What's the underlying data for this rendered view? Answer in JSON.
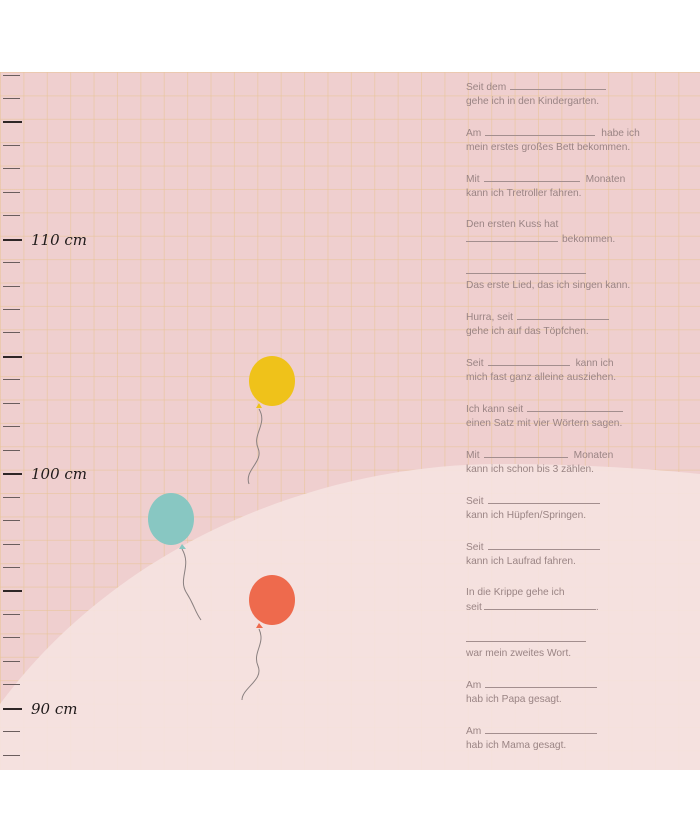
{
  "ruler": {
    "labels": [
      "110 cm",
      "100 cm",
      "90 cm"
    ]
  },
  "balloons": [
    {
      "name": "yellow-balloon",
      "color": "#efc21a"
    },
    {
      "name": "teal-balloon",
      "color": "#88c7c2"
    },
    {
      "name": "orange-balloon",
      "color": "#ee6a4d"
    }
  ],
  "colors": {
    "background": "#efcfcf",
    "hill": "#f6e4e1",
    "grid": "#e8c496",
    "text": "#9a8484"
  },
  "milestones": [
    {
      "line1_prefix": "Seit dem",
      "line1_suffix": "",
      "line2": "gehe ich in den Kindergarten."
    },
    {
      "line1_prefix": "Am",
      "line1_suffix": "habe ich",
      "line2": "mein erstes großes Bett bekommen."
    },
    {
      "line1_prefix": "Mit",
      "line1_suffix": "Monaten",
      "line2": "kann ich Tretroller fahren."
    },
    {
      "line1_prefix": "Den ersten Kuss hat",
      "line1_suffix": "",
      "line2": "bekommen."
    },
    {
      "line1_prefix": "",
      "line1_suffix": "",
      "line2": "Das erste Lied, das ich singen kann."
    },
    {
      "line1_prefix": "Hurra, seit",
      "line1_suffix": "",
      "line2": "gehe ich auf das Töpfchen."
    },
    {
      "line1_prefix": "Seit",
      "line1_suffix": "kann ich",
      "line2": "mich fast ganz alleine ausziehen."
    },
    {
      "line1_prefix": "Ich kann seit",
      "line1_suffix": "",
      "line2": "einen Satz mit vier Wörtern sagen."
    },
    {
      "line1_prefix": "Mit",
      "line1_suffix": "Monaten",
      "line2": "kann ich schon bis 3 zählen."
    },
    {
      "line1_prefix": "Seit",
      "line1_suffix": "",
      "line2": "kann ich Hüpfen/Springen."
    },
    {
      "line1_prefix": "Seit",
      "line1_suffix": "",
      "line2": "kann ich Laufrad fahren."
    },
    {
      "line1_prefix": "In die Krippe gehe ich",
      "line1_suffix": "",
      "line2": "seit"
    },
    {
      "line1_prefix": "",
      "line1_suffix": "",
      "line2": "war mein zweites Wort."
    },
    {
      "line1_prefix": "Am",
      "line1_suffix": "",
      "line2": "hab ich Papa gesagt."
    },
    {
      "line1_prefix": "Am",
      "line1_suffix": "",
      "line2": "hab ich Mama gesagt."
    }
  ]
}
